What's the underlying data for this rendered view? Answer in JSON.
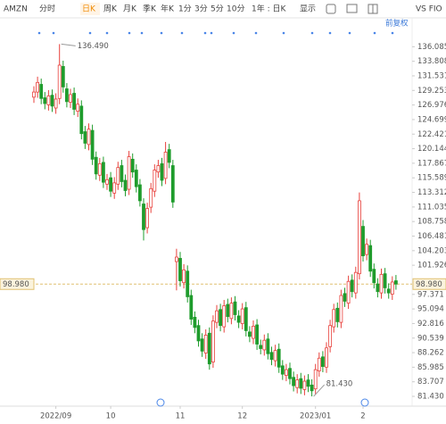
{
  "toolbar": {
    "symbol": "AMZN",
    "tabs": [
      "分时",
      "日K",
      "周K",
      "月K",
      "季K",
      "年K",
      "1分",
      "3分",
      "5分",
      "10分"
    ],
    "period": "1年 : 日K",
    "display": "显示",
    "compare": "VS FIO",
    "adjust": "前复权"
  },
  "chart_data": {
    "type": "candlestick",
    "categories": [
      null,
      null,
      null,
      null,
      null,
      null,
      "2022/09",
      null,
      null,
      null,
      null,
      null,
      null,
      null,
      null,
      null,
      null,
      null,
      null,
      null,
      null,
      "10",
      null,
      null,
      null,
      null,
      null,
      null,
      null,
      null,
      null,
      null,
      null,
      null,
      null,
      null,
      null,
      null,
      null,
      null,
      "11",
      null,
      null,
      null,
      null,
      null,
      null,
      null,
      null,
      null,
      null,
      null,
      null,
      null,
      null,
      null,
      null,
      "12",
      null,
      null,
      null,
      null,
      null,
      null,
      null,
      null,
      null,
      null,
      null,
      null,
      null,
      null,
      null,
      null,
      null,
      null,
      null,
      "2023/01",
      null,
      null,
      null,
      null,
      null,
      null,
      null,
      null,
      null,
      null,
      null,
      null,
      "2",
      null,
      null,
      null,
      null,
      null,
      null,
      null,
      null,
      null
    ],
    "open": [
      128.2,
      129.0,
      130.2,
      128.1,
      127.0,
      128.5,
      126.5,
      128.0,
      133.0,
      129.5,
      127.4,
      128.8,
      126.0,
      126.8,
      122.8,
      120.8,
      123.0,
      118.8,
      116.0,
      118.0,
      114.6,
      115.6,
      113.2,
      114.6,
      117.5,
      115.2,
      113.8,
      118.5,
      116.8,
      114.5,
      111.5,
      107.8,
      111.0,
      113.5,
      116.5,
      117.8,
      115.5,
      120.0,
      117.5,
      102.5,
      103.0,
      99.2,
      101.0,
      97.2,
      93.8,
      92.5,
      90.4,
      88.2,
      91.3,
      86.8,
      93.0,
      95.0,
      92.3,
      95.8,
      93.6,
      96.2,
      94.0,
      92.8,
      95.3,
      91.5,
      90.5,
      92.6,
      89.4,
      88.7,
      90.4,
      88.3,
      87.0,
      88.8,
      86.2,
      84.7,
      85.8,
      84.4,
      82.8,
      84.2,
      82.5,
      84.0,
      83.2,
      82.6,
      85.4,
      87.6,
      86.0,
      89.2,
      92.3,
      95.2,
      93.0,
      97.5,
      96.0,
      99.6,
      97.6,
      100.6,
      108.0,
      103.6,
      105.0,
      101.3,
      99.0,
      97.6,
      100.6,
      98.2,
      97.4,
      99.5
    ],
    "high": [
      129.9,
      131.4,
      131.1,
      129.0,
      129.3,
      129.4,
      128.8,
      136.49,
      133.9,
      130.4,
      129.5,
      129.7,
      128.0,
      127.7,
      123.7,
      124.1,
      123.9,
      119.7,
      118.7,
      118.9,
      116.2,
      116.5,
      115.7,
      118.1,
      118.4,
      116.1,
      119.8,
      119.4,
      117.7,
      115.4,
      112.4,
      111.7,
      114.8,
      117.7,
      118.4,
      118.7,
      121.2,
      120.9,
      118.4,
      104.5,
      104.0,
      102.1,
      101.9,
      98.1,
      94.7,
      93.4,
      91.3,
      91.9,
      92.2,
      94.1,
      95.7,
      95.9,
      96.5,
      96.7,
      96.9,
      97.1,
      94.9,
      96.0,
      96.2,
      92.4,
      93.3,
      93.5,
      90.3,
      91.1,
      91.3,
      89.2,
      89.5,
      89.7,
      87.1,
      86.5,
      86.7,
      85.3,
      84.9,
      85.1,
      84.7,
      84.9,
      84.1,
      86.5,
      88.3,
      88.5,
      89.9,
      93.4,
      95.9,
      96.1,
      98.1,
      98.4,
      100.3,
      100.5,
      101.7,
      113.3,
      109.0,
      106.1,
      105.9,
      102.2,
      99.9,
      101.4,
      101.5,
      99.1,
      100.2,
      100.4
    ],
    "low": [
      127.3,
      128.1,
      127.1,
      126.3,
      126.1,
      125.9,
      125.6,
      127.1,
      128.9,
      126.6,
      126.5,
      125.4,
      125.1,
      121.6,
      120.1,
      119.9,
      117.6,
      115.3,
      115.1,
      114.0,
      113.7,
      112.6,
      112.3,
      113.7,
      114.1,
      112.7,
      112.9,
      115.6,
      113.3,
      111.1,
      105.8,
      106.9,
      110.1,
      112.6,
      115.6,
      114.3,
      114.6,
      117.1,
      110.9,
      98.0,
      98.6,
      98.3,
      96.1,
      92.6,
      91.3,
      89.2,
      87.6,
      87.3,
      85.6,
      85.9,
      92.1,
      91.6,
      91.4,
      93.0,
      92.7,
      93.3,
      92.1,
      91.9,
      90.8,
      89.9,
      89.6,
      88.7,
      88.0,
      87.8,
      87.2,
      86.3,
      86.1,
      85.1,
      84.0,
      83.8,
      83.3,
      82.2,
      81.9,
      81.8,
      81.6,
      82.1,
      81.43,
      81.7,
      84.5,
      85.2,
      85.1,
      88.3,
      91.4,
      92.2,
      92.1,
      95.4,
      95.1,
      96.9,
      96.7,
      99.7,
      102.5,
      102.7,
      100.1,
      98.3,
      96.9,
      96.7,
      97.5,
      96.7,
      96.5,
      98.1
    ],
    "close": [
      129.0,
      130.5,
      128.0,
      127.2,
      128.4,
      126.8,
      127.9,
      133.2,
      129.8,
      127.5,
      128.6,
      126.3,
      127.1,
      122.5,
      121.0,
      123.2,
      118.5,
      116.2,
      117.8,
      114.9,
      115.3,
      113.5,
      114.8,
      117.2,
      115.0,
      113.6,
      118.9,
      116.5,
      114.2,
      112.0,
      107.5,
      110.8,
      113.9,
      116.8,
      117.5,
      115.2,
      119.6,
      118.0,
      111.8,
      103.2,
      99.5,
      101.2,
      97.0,
      93.5,
      92.2,
      90.1,
      88.5,
      91.0,
      86.5,
      93.2,
      94.8,
      92.5,
      95.6,
      93.9,
      96.0,
      94.2,
      93.0,
      95.1,
      91.7,
      90.8,
      92.4,
      89.6,
      88.9,
      90.2,
      88.1,
      87.2,
      88.6,
      86.0,
      84.9,
      85.6,
      84.2,
      83.1,
      84.0,
      82.7,
      83.8,
      83.0,
      82.3,
      85.6,
      87.4,
      86.1,
      89.0,
      92.5,
      95.0,
      93.1,
      97.2,
      96.3,
      99.4,
      97.8,
      100.8,
      112.0,
      103.4,
      105.2,
      101.0,
      99.2,
      97.8,
      100.5,
      98.4,
      97.6,
      99.3,
      98.98
    ],
    "up_color": "#e8413c",
    "down_color": "#1f9c2c",
    "ylim": [
      79.9,
      139.2
    ],
    "yticks": [
      136.085,
      133.808,
      131.531,
      129.253,
      126.976,
      124.699,
      122.421,
      120.144,
      117.867,
      115.589,
      113.312,
      111.035,
      108.758,
      106.481,
      104.203,
      101.926,
      97.371,
      95.094,
      92.816,
      90.539,
      88.262,
      85.985,
      83.707,
      {
        "value": 81.43,
        "label": "81.430"
      }
    ],
    "last_price": {
      "value": 98.98,
      "label": "98.980"
    },
    "max_label": {
      "value": 136.49,
      "label": "136.490"
    },
    "min_label": {
      "value": 81.43,
      "label": "81.430"
    }
  }
}
